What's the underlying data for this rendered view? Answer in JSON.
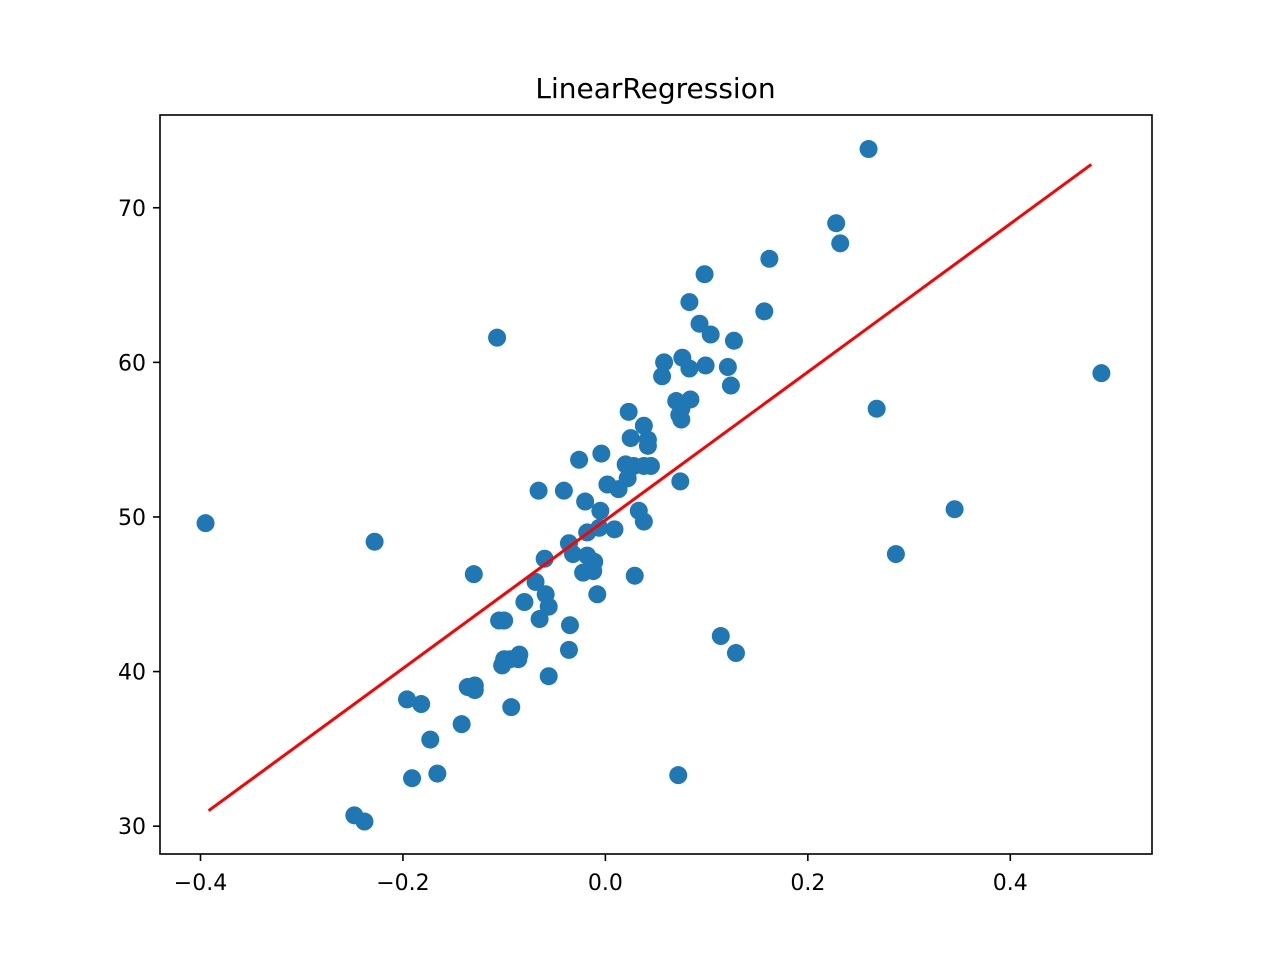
{
  "chart_data": {
    "type": "scatter",
    "title": "LinearRegression",
    "xlabel": "",
    "ylabel": "",
    "xlim": [
      -0.44,
      0.54
    ],
    "ylim": [
      28.2,
      76.0
    ],
    "grid": false,
    "x_ticks": [
      -0.4,
      -0.2,
      0.0,
      0.2,
      0.4
    ],
    "x_tick_labels": [
      "−0.4",
      "−0.2",
      "0.0",
      "0.2",
      "0.4"
    ],
    "y_ticks": [
      30,
      40,
      50,
      60,
      70
    ],
    "y_tick_labels": [
      "30",
      "40",
      "50",
      "60",
      "70"
    ],
    "colors": {
      "points": "#1f77b4",
      "fit_line": "#ff0000",
      "axes": "#000000"
    },
    "points": [
      [
        -0.395,
        49.6
      ],
      [
        -0.228,
        48.4
      ],
      [
        -0.248,
        30.7
      ],
      [
        -0.238,
        30.3
      ],
      [
        -0.196,
        38.2
      ],
      [
        -0.182,
        37.9
      ],
      [
        -0.191,
        33.1
      ],
      [
        -0.173,
        35.6
      ],
      [
        -0.166,
        33.4
      ],
      [
        -0.142,
        36.6
      ],
      [
        -0.136,
        39.0
      ],
      [
        -0.129,
        39.1
      ],
      [
        -0.129,
        38.8
      ],
      [
        -0.13,
        46.3
      ],
      [
        -0.105,
        43.3
      ],
      [
        -0.1,
        43.3
      ],
      [
        -0.102,
        40.4
      ],
      [
        -0.1,
        40.8
      ],
      [
        -0.094,
        40.8
      ],
      [
        -0.086,
        40.8
      ],
      [
        -0.085,
        41.1
      ],
      [
        -0.093,
        37.7
      ],
      [
        -0.107,
        61.6
      ],
      [
        -0.08,
        44.5
      ],
      [
        -0.065,
        43.4
      ],
      [
        -0.069,
        45.8
      ],
      [
        -0.06,
        47.3
      ],
      [
        -0.059,
        45.0
      ],
      [
        -0.056,
        44.2
      ],
      [
        -0.056,
        39.7
      ],
      [
        -0.066,
        51.7
      ],
      [
        -0.041,
        51.7
      ],
      [
        -0.036,
        48.3
      ],
      [
        -0.032,
        47.6
      ],
      [
        -0.035,
        43.0
      ],
      [
        -0.036,
        41.4
      ],
      [
        -0.026,
        53.7
      ],
      [
        -0.02,
        51.0
      ],
      [
        -0.018,
        49.0
      ],
      [
        -0.018,
        47.5
      ],
      [
        -0.022,
        46.4
      ],
      [
        -0.011,
        47.1
      ],
      [
        -0.012,
        46.5
      ],
      [
        -0.008,
        45.0
      ],
      [
        -0.006,
        49.3
      ],
      [
        -0.005,
        50.4
      ],
      [
        -0.004,
        54.1
      ],
      [
        0.002,
        52.1
      ],
      [
        0.009,
        49.2
      ],
      [
        0.013,
        51.8
      ],
      [
        0.02,
        53.4
      ],
      [
        0.022,
        52.5
      ],
      [
        0.023,
        56.8
      ],
      [
        0.025,
        55.1
      ],
      [
        0.028,
        53.3
      ],
      [
        0.029,
        46.2
      ],
      [
        0.033,
        50.4
      ],
      [
        0.038,
        49.7
      ],
      [
        0.038,
        53.3
      ],
      [
        0.038,
        55.9
      ],
      [
        0.042,
        55.0
      ],
      [
        0.042,
        54.6
      ],
      [
        0.045,
        53.3
      ],
      [
        0.056,
        59.1
      ],
      [
        0.058,
        60.0
      ],
      [
        0.07,
        57.5
      ],
      [
        0.073,
        56.6
      ],
      [
        0.074,
        52.3
      ],
      [
        0.075,
        56.3
      ],
      [
        0.075,
        57.0
      ],
      [
        0.076,
        60.3
      ],
      [
        0.083,
        59.6
      ],
      [
        0.084,
        57.6
      ],
      [
        0.083,
        63.9
      ],
      [
        0.093,
        62.5
      ],
      [
        0.098,
        65.7
      ],
      [
        0.099,
        59.8
      ],
      [
        0.104,
        61.8
      ],
      [
        0.121,
        59.7
      ],
      [
        0.124,
        58.5
      ],
      [
        0.127,
        61.4
      ],
      [
        0.114,
        42.3
      ],
      [
        0.129,
        41.2
      ],
      [
        0.072,
        33.3
      ],
      [
        0.157,
        63.3
      ],
      [
        0.162,
        66.7
      ],
      [
        0.228,
        69.0
      ],
      [
        0.232,
        67.7
      ],
      [
        0.26,
        73.8
      ],
      [
        0.268,
        57.0
      ],
      [
        0.287,
        47.6
      ],
      [
        0.345,
        50.5
      ],
      [
        0.49,
        59.3
      ]
    ],
    "fit_line": {
      "x": [
        -0.392,
        0.48
      ],
      "y": [
        31.0,
        72.8
      ]
    }
  }
}
